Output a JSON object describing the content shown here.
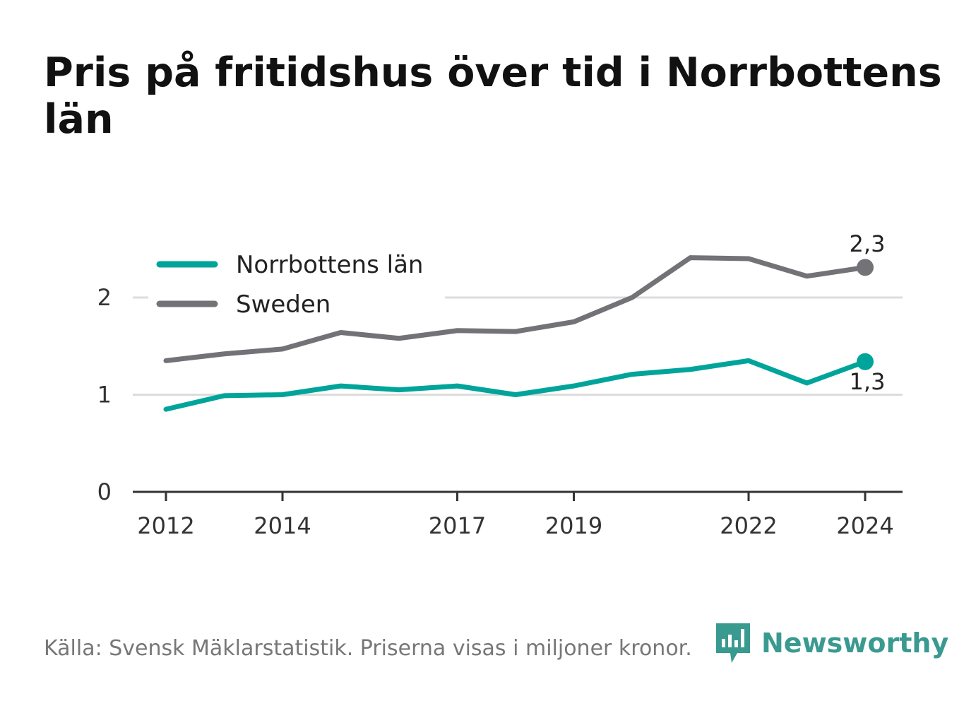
{
  "chart_data": {
    "type": "line",
    "title": "Pris på fritidshus över tid i Norrbottens län",
    "x": [
      2012,
      2013,
      2014,
      2015,
      2016,
      2017,
      2018,
      2019,
      2020,
      2021,
      2022,
      2023,
      2024
    ],
    "x_tick_labels": [
      "2012",
      "2014",
      "2017",
      "2019",
      "2022",
      "2024"
    ],
    "x_tick_values": [
      2012,
      2014,
      2017,
      2019,
      2022,
      2024
    ],
    "y_tick_labels": [
      "0",
      "1",
      "2"
    ],
    "y_tick_values": [
      0,
      1,
      2
    ],
    "ylim": [
      0,
      2.5
    ],
    "xlabel": "",
    "ylabel": "",
    "grid": "horizontal",
    "legend_position": "top-left",
    "series": [
      {
        "name": "Norrbottens län",
        "color": "#00a49a",
        "values": [
          0.85,
          0.99,
          1.0,
          1.09,
          1.05,
          1.09,
          1.0,
          1.09,
          1.21,
          1.26,
          1.35,
          1.12,
          1.34
        ],
        "end_label": "1,3"
      },
      {
        "name": "Sweden",
        "color": "#737277",
        "values": [
          1.35,
          1.42,
          1.47,
          1.64,
          1.58,
          1.66,
          1.65,
          1.75,
          2.0,
          2.41,
          2.4,
          2.22,
          2.31
        ],
        "end_label": "2,3"
      }
    ]
  },
  "footer": {
    "source": "Källa: Svensk Mäklarstatistik. Priserna visas i miljoner kronor.",
    "brand": "Newsworthy",
    "brand_color": "#3a9a90",
    "logo_icon": "bar-chart-speech-bubble-icon"
  }
}
